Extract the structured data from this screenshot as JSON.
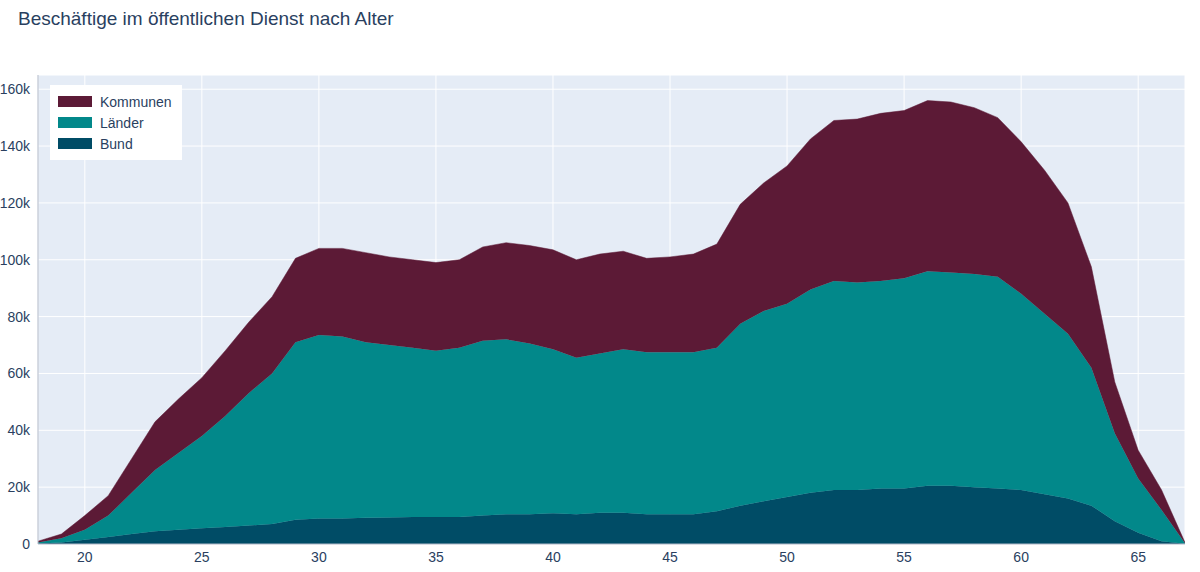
{
  "chart_data": {
    "type": "area",
    "title": "Beschäftige im öffentlichen Dienst nach Alter",
    "stacked": true,
    "grid": true,
    "legend": "upper left",
    "x": [
      18,
      19,
      20,
      21,
      22,
      23,
      24,
      25,
      26,
      27,
      28,
      29,
      30,
      31,
      32,
      33,
      34,
      35,
      36,
      37,
      38,
      39,
      40,
      41,
      42,
      43,
      44,
      45,
      46,
      47,
      48,
      49,
      50,
      51,
      52,
      53,
      54,
      55,
      56,
      57,
      58,
      59,
      60,
      61,
      62,
      63,
      64,
      65,
      66,
      67
    ],
    "xlim": [
      18,
      67
    ],
    "xticks": [
      20,
      25,
      30,
      35,
      40,
      45,
      50,
      55,
      60,
      65
    ],
    "ylim": [
      0,
      165000
    ],
    "yticks": [
      0,
      {
        "value": 20000,
        "label": "20k"
      },
      {
        "value": 40000,
        "label": "40k"
      },
      {
        "value": 60000,
        "label": "60k"
      },
      {
        "value": 80000,
        "label": "80k"
      },
      {
        "value": 100000,
        "label": "100k"
      },
      {
        "value": 120000,
        "label": "120k"
      },
      {
        "value": 140000,
        "label": "140k"
      },
      {
        "value": 160000,
        "label": "160k"
      }
    ],
    "series": [
      {
        "name": "Kommunen",
        "color": "#5c1a36",
        "values": [
          500,
          1500,
          5000,
          7000,
          12000,
          17000,
          19000,
          20500,
          23000,
          25000,
          27000,
          29500,
          30500,
          31000,
          31500,
          31000,
          31000,
          31000,
          31000,
          33000,
          34000,
          34500,
          35000,
          34500,
          35000,
          34500,
          33000,
          33500,
          34500,
          36500,
          42000,
          45000,
          48500,
          53000,
          56500,
          57500,
          59000,
          59000,
          60000,
          60000,
          58500,
          56000,
          53500,
          50500,
          46000,
          35500,
          18000,
          10000,
          7000,
          200
        ]
      },
      {
        "name": "Länder",
        "color": "#02888a",
        "values": [
          300,
          1500,
          3500,
          7500,
          14500,
          21500,
          27000,
          32500,
          39000,
          46500,
          53000,
          62500,
          64500,
          64000,
          61800,
          60700,
          59500,
          58500,
          59500,
          61500,
          61500,
          60000,
          57700,
          55000,
          56000,
          57500,
          57000,
          57000,
          57000,
          57500,
          64000,
          67000,
          68000,
          71500,
          73500,
          73000,
          73000,
          74000,
          75500,
          75000,
          75000,
          74500,
          69000,
          63500,
          58000,
          48500,
          31000,
          19000,
          11000,
          200
        ]
      },
      {
        "name": "Bund",
        "color": "#004c66",
        "values": [
          200,
          500,
          1500,
          2500,
          3500,
          4500,
          5000,
          5500,
          6000,
          6500,
          7000,
          8500,
          9000,
          9000,
          9200,
          9300,
          9500,
          9500,
          9500,
          10000,
          10500,
          10500,
          10800,
          10500,
          11000,
          11000,
          10500,
          10500,
          10500,
          11500,
          13500,
          15000,
          16500,
          18000,
          19000,
          19000,
          19500,
          19500,
          20500,
          20500,
          20000,
          19500,
          19000,
          17500,
          16000,
          13500,
          8000,
          4000,
          1000,
          100
        ]
      }
    ]
  }
}
